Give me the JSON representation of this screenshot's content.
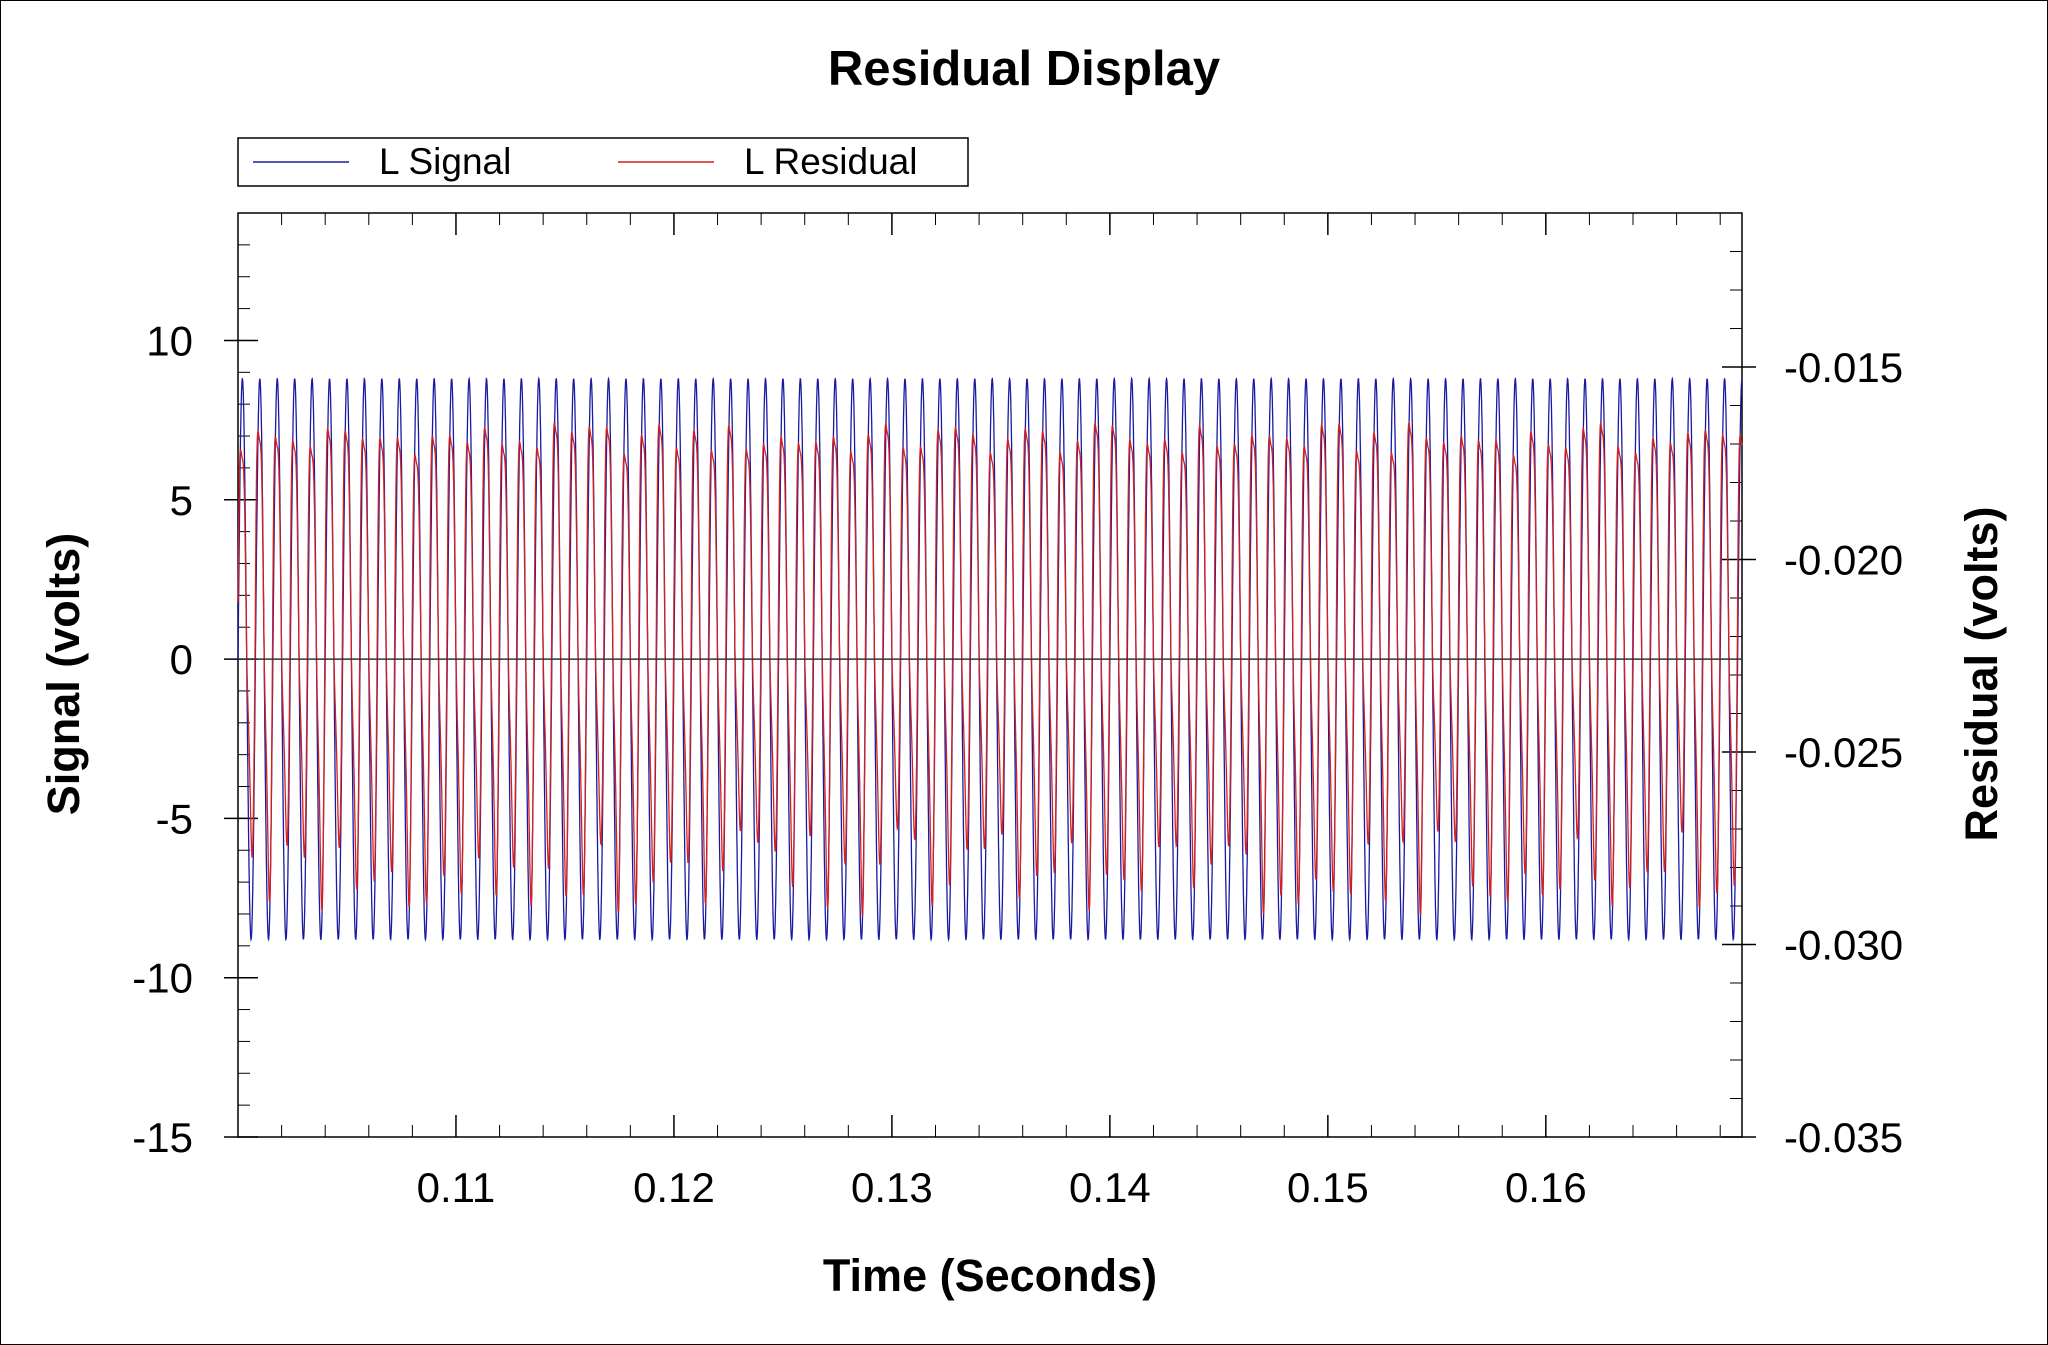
{
  "chart_data": {
    "type": "line",
    "title": "Residual Display",
    "xlabel": "Time (Seconds)",
    "ylabel": "Signal (volts)",
    "y2label": "Residual (volts)",
    "xlim": [
      0.1,
      0.169
    ],
    "ylim": [
      -15,
      14
    ],
    "y2lim": [
      -0.035,
      -0.011
    ],
    "x_ticks": [
      0.11,
      0.12,
      0.13,
      0.14,
      0.15,
      0.16
    ],
    "x_tick_labels": [
      "0.11",
      "0.12",
      "0.13",
      "0.14",
      "0.15",
      "0.16"
    ],
    "y_ticks": [
      10,
      5,
      0,
      -5,
      -10,
      -15
    ],
    "y_tick_labels": [
      "10",
      "5",
      "0",
      "-5",
      "-10",
      "-15"
    ],
    "y2_ticks": [
      -0.015,
      -0.02,
      -0.025,
      -0.03,
      -0.035
    ],
    "y2_tick_labels": [
      "-0.015",
      "-0.020",
      "-0.025",
      "-0.030",
      "-0.035"
    ],
    "zero_line": 0,
    "grid": false,
    "legend_position": "top-left",
    "series": [
      {
        "name": "L Signal",
        "color": "#1a1aa0",
        "axis": "left",
        "waveform": "sine",
        "frequency_hz": 1250,
        "amplitude": 8.8,
        "offset": 0
      },
      {
        "name": "L Residual",
        "color": "#d42020",
        "axis": "left",
        "waveform": "distorted periodic",
        "frequency_hz": 1250,
        "peak_max": 10.2,
        "trough_min": -8.3
      }
    ]
  }
}
